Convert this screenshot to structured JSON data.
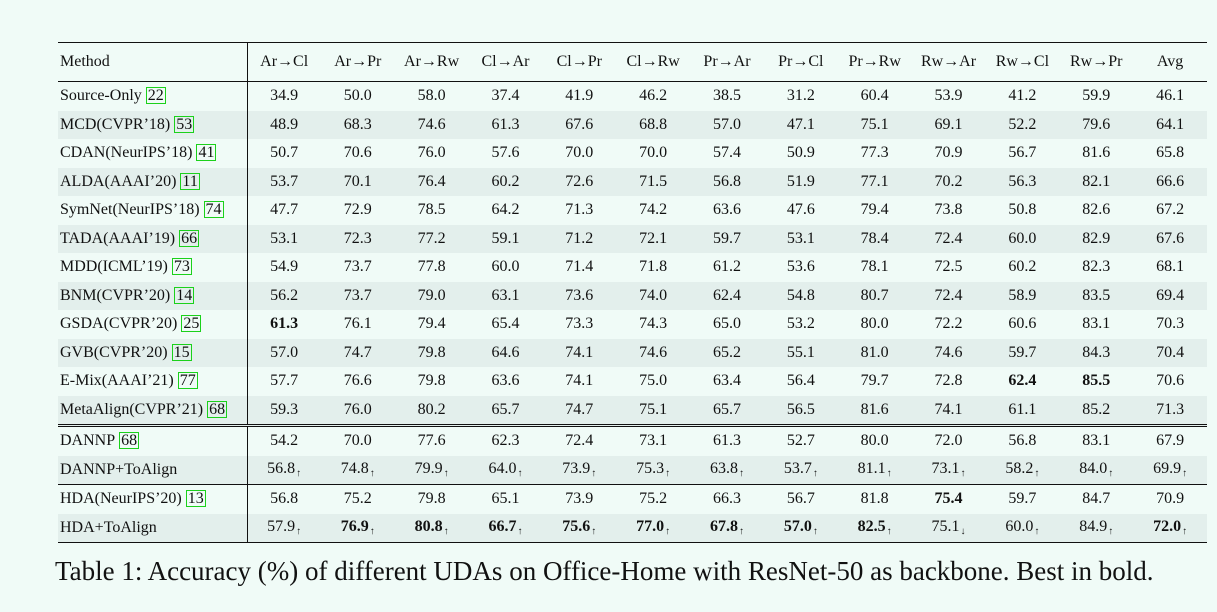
{
  "table": {
    "columns": [
      "Method",
      "Ar→Cl",
      "Ar→Pr",
      "Ar→Rw",
      "Cl→Ar",
      "Cl→Pr",
      "Cl→Rw",
      "Pr→Ar",
      "Pr→Cl",
      "Pr→Rw",
      "Rw→Ar",
      "Rw→Cl",
      "Rw→Pr",
      "Avg"
    ],
    "rows": [
      {
        "name": "Source-Only",
        "ref": "22",
        "values": [
          "34.9",
          "50.0",
          "58.0",
          "37.4",
          "41.9",
          "46.2",
          "38.5",
          "31.2",
          "60.4",
          "53.9",
          "41.2",
          "59.9",
          "46.1"
        ],
        "bold": []
      },
      {
        "name": "MCD(CVPR’18)",
        "ref": "53",
        "values": [
          "48.9",
          "68.3",
          "74.6",
          "61.3",
          "67.6",
          "68.8",
          "57.0",
          "47.1",
          "75.1",
          "69.1",
          "52.2",
          "79.6",
          "64.1"
        ],
        "bold": []
      },
      {
        "name": "CDAN(NeurIPS’18)",
        "ref": "41",
        "values": [
          "50.7",
          "70.6",
          "76.0",
          "57.6",
          "70.0",
          "70.0",
          "57.4",
          "50.9",
          "77.3",
          "70.9",
          "56.7",
          "81.6",
          "65.8"
        ],
        "bold": []
      },
      {
        "name": "ALDA(AAAI’20)",
        "ref": "11",
        "values": [
          "53.7",
          "70.1",
          "76.4",
          "60.2",
          "72.6",
          "71.5",
          "56.8",
          "51.9",
          "77.1",
          "70.2",
          "56.3",
          "82.1",
          "66.6"
        ],
        "bold": []
      },
      {
        "name": "SymNet(NeurIPS’18)",
        "ref": "74",
        "values": [
          "47.7",
          "72.9",
          "78.5",
          "64.2",
          "71.3",
          "74.2",
          "63.6",
          "47.6",
          "79.4",
          "73.8",
          "50.8",
          "82.6",
          "67.2"
        ],
        "bold": []
      },
      {
        "name": "TADA(AAAI’19)",
        "ref": "66",
        "values": [
          "53.1",
          "72.3",
          "77.2",
          "59.1",
          "71.2",
          "72.1",
          "59.7",
          "53.1",
          "78.4",
          "72.4",
          "60.0",
          "82.9",
          "67.6"
        ],
        "bold": []
      },
      {
        "name": "MDD(ICML’19)",
        "ref": "73",
        "values": [
          "54.9",
          "73.7",
          "77.8",
          "60.0",
          "71.4",
          "71.8",
          "61.2",
          "53.6",
          "78.1",
          "72.5",
          "60.2",
          "82.3",
          "68.1"
        ],
        "bold": []
      },
      {
        "name": "BNM(CVPR’20)",
        "ref": "14",
        "values": [
          "56.2",
          "73.7",
          "79.0",
          "63.1",
          "73.6",
          "74.0",
          "62.4",
          "54.8",
          "80.7",
          "72.4",
          "58.9",
          "83.5",
          "69.4"
        ],
        "bold": []
      },
      {
        "name": "GSDA(CVPR’20)",
        "ref": "25",
        "values": [
          "61.3",
          "76.1",
          "79.4",
          "65.4",
          "73.3",
          "74.3",
          "65.0",
          "53.2",
          "80.0",
          "72.2",
          "60.6",
          "83.1",
          "70.3"
        ],
        "bold": [
          0
        ]
      },
      {
        "name": "GVB(CVPR’20)",
        "ref": "15",
        "values": [
          "57.0",
          "74.7",
          "79.8",
          "64.6",
          "74.1",
          "74.6",
          "65.2",
          "55.1",
          "81.0",
          "74.6",
          "59.7",
          "84.3",
          "70.4"
        ],
        "bold": []
      },
      {
        "name": "E-Mix(AAAI’21)",
        "ref": "77",
        "values": [
          "57.7",
          "76.6",
          "79.8",
          "63.6",
          "74.1",
          "75.0",
          "63.4",
          "56.4",
          "79.7",
          "72.8",
          "62.4",
          "85.5",
          "70.6"
        ],
        "bold": [
          10,
          11
        ]
      },
      {
        "name": "MetaAlign(CVPR’21)",
        "ref": "68",
        "values": [
          "59.3",
          "76.0",
          "80.2",
          "65.7",
          "74.7",
          "75.1",
          "65.7",
          "56.5",
          "81.6",
          "74.1",
          "61.1",
          "85.2",
          "71.3"
        ],
        "bold": []
      },
      {
        "name": "DANNP",
        "ref": "68",
        "values": [
          "54.2",
          "70.0",
          "77.6",
          "62.3",
          "72.4",
          "73.1",
          "61.3",
          "52.7",
          "80.0",
          "72.0",
          "56.8",
          "83.1",
          "67.9"
        ],
        "bold": [],
        "sep": "double"
      },
      {
        "name": "DANNP+ToAlign",
        "values": [
          "56.8",
          "74.8",
          "79.9",
          "64.0",
          "73.9",
          "75.3",
          "63.8",
          "53.7",
          "81.1",
          "73.1",
          "58.2",
          "84.0",
          "69.9"
        ],
        "arrows": [
          "↑",
          "↑",
          "↑",
          "↑",
          "↑",
          "↑",
          "↑",
          "↑",
          "↑",
          "↑",
          "↑",
          "↑",
          "↑"
        ],
        "bold": []
      },
      {
        "name": "HDA(NeurIPS’20)",
        "ref": "13",
        "values": [
          "56.8",
          "75.2",
          "79.8",
          "65.1",
          "73.9",
          "75.2",
          "66.3",
          "56.7",
          "81.8",
          "75.4",
          "59.7",
          "84.7",
          "70.9"
        ],
        "bold": [
          9
        ],
        "sep": "single"
      },
      {
        "name": "HDA+ToAlign",
        "values": [
          "57.9",
          "76.9",
          "80.8",
          "66.7",
          "75.6",
          "77.0",
          "67.8",
          "57.0",
          "82.5",
          "75.1",
          "60.0",
          "84.9",
          "72.0"
        ],
        "arrows": [
          "↑",
          "↑",
          "↑",
          "↑",
          "↑",
          "↑",
          "↑",
          "↑",
          "↑",
          "↓",
          "↑",
          "↑",
          "↑"
        ],
        "bold": [
          1,
          2,
          3,
          4,
          5,
          6,
          7,
          8,
          12
        ]
      }
    ]
  },
  "caption": "Table 1: Accuracy (%) of different UDAs on Office-Home with ResNet-50 as backbone. Best in bold."
}
